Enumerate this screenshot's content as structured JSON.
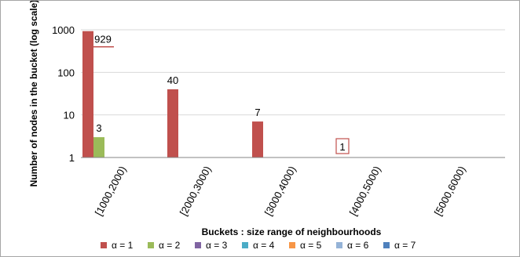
{
  "chart_data": {
    "type": "bar",
    "xlabel": "Buckets : size range of neighbourhoods",
    "ylabel": "Number of nodes in the bucket (log scale)",
    "yscale": "log",
    "ylim": [
      1,
      1000
    ],
    "yticks": [
      "1",
      "10",
      "100",
      "1000"
    ],
    "grid": true,
    "legend_position": "bottom",
    "categories": [
      "[1000,2000)",
      "[2000,3000)",
      "[3000,4000)",
      "[4000,5000)",
      "[5000,6000)"
    ],
    "series": [
      {
        "name": "α = 1",
        "color": "#c0504d",
        "values": [
          929,
          40,
          7,
          1,
          null
        ]
      },
      {
        "name": "α = 2",
        "color": "#9bbb59",
        "values": [
          3,
          null,
          null,
          null,
          null
        ]
      },
      {
        "name": "α = 3",
        "color": "#8064a2",
        "values": [
          null,
          null,
          null,
          null,
          null
        ]
      },
      {
        "name": "α = 4",
        "color": "#4bacc6",
        "values": [
          null,
          null,
          null,
          null,
          null
        ]
      },
      {
        "name": "α = 5",
        "color": "#f79646",
        "values": [
          null,
          null,
          null,
          null,
          null
        ]
      },
      {
        "name": "α = 6",
        "color": "#95b3d7",
        "values": [
          null,
          null,
          null,
          null,
          null
        ]
      },
      {
        "name": "α = 7",
        "color": "#4f81bd",
        "values": [
          null,
          null,
          null,
          null,
          null
        ]
      }
    ],
    "data_labels": [
      {
        "series": 0,
        "category": 0,
        "text": "929"
      },
      {
        "series": 1,
        "category": 0,
        "text": "3"
      },
      {
        "series": 0,
        "category": 1,
        "text": "40"
      },
      {
        "series": 0,
        "category": 2,
        "text": "7"
      },
      {
        "series": 0,
        "category": 3,
        "text": "1"
      }
    ]
  }
}
